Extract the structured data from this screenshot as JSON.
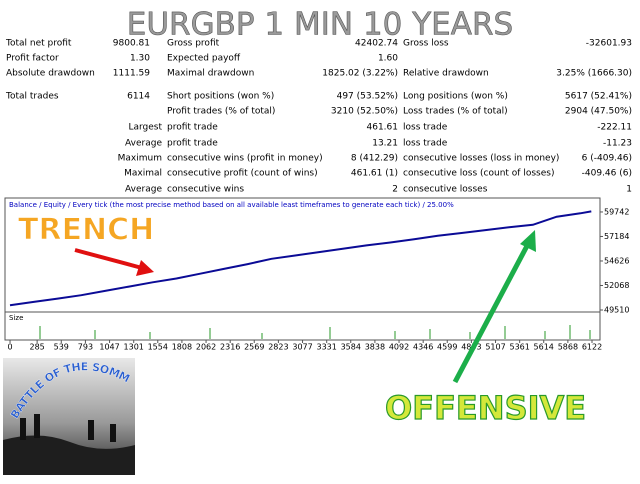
{
  "header": {
    "title": "EURGBP 1 MIN 10 YEARS"
  },
  "stats": {
    "rows": [
      {
        "c1": {
          "label": "Total net profit",
          "value": "9800.81"
        },
        "c2": {
          "label": "Gross profit",
          "value": "42402.74"
        },
        "c3": {
          "label": "Gross loss",
          "value": "-32601.93"
        }
      },
      {
        "c1": {
          "label": "Profit factor",
          "value": "1.30"
        },
        "c2": {
          "label": "Expected payoff",
          "value": "1.60"
        }
      },
      {
        "c1": {
          "label": "Absolute drawdown",
          "value": "1111.59"
        },
        "c2": {
          "label": "Maximal drawdown",
          "value": "1825.02 (3.22%)"
        },
        "c3": {
          "label": "Relative drawdown",
          "value": "3.25% (1666.30)"
        }
      },
      {
        "c1": {
          "label": "Total trades",
          "value": "6114"
        },
        "c2": {
          "label": "Short positions (won %)",
          "value": "497 (53.52%)"
        },
        "c3": {
          "label": "Long positions (won %)",
          "value": "5617 (52.41%)"
        }
      },
      {
        "c2": {
          "label": "Profit trades (% of total)",
          "value": "3210 (52.50%)"
        },
        "c3": {
          "label": "Loss trades (% of total)",
          "value": "2904 (47.50%)"
        }
      },
      {
        "c1": {
          "label": "Largest"
        },
        "c2": {
          "label": "profit trade",
          "value": "461.61"
        },
        "c3": {
          "label": "loss trade",
          "value": "-222.11"
        }
      },
      {
        "c1": {
          "label": "Average"
        },
        "c2": {
          "label": "profit trade",
          "value": "13.21"
        },
        "c3": {
          "label": "loss trade",
          "value": "-11.23"
        }
      },
      {
        "c1": {
          "label": "Maximum"
        },
        "c2": {
          "label": "consecutive wins (profit in money)",
          "value": "8 (412.29)"
        },
        "c3": {
          "label": "consecutive losses (loss in money)",
          "value": "6 (-409.46)"
        }
      },
      {
        "c1": {
          "label": "Maximal"
        },
        "c2": {
          "label": "consecutive profit (count of wins)",
          "value": "461.61 (1)"
        },
        "c3": {
          "label": "consecutive loss (count of losses)",
          "value": "-409.46 (6)"
        }
      },
      {
        "c1": {
          "label": "Average"
        },
        "c2": {
          "label": "consecutive wins",
          "value": "2"
        },
        "c3": {
          "label": "consecutive losses",
          "value": "1"
        }
      }
    ]
  },
  "chart": {
    "legend": "Balance / Equity / Every tick (the most precise method based on all available least timeframes to generate each tick) / 25.00%",
    "ylim": [
      49300,
      61200
    ],
    "yticks": [
      59742,
      57184,
      54626,
      52068,
      49510
    ],
    "xlim": [
      -53,
      6206
    ],
    "xticks": [
      0,
      285,
      539,
      793,
      1047,
      1301,
      1554,
      1808,
      2062,
      2316,
      2569,
      2823,
      3077,
      3331,
      3584,
      3838,
      4092,
      4346,
      4599,
      4853,
      5107,
      5361,
      5614,
      5868,
      6122
    ],
    "size_label": "Size",
    "balance": {
      "color": "#0b0b96",
      "x": [
        0,
        250,
        500,
        750,
        1000,
        1250,
        1500,
        1750,
        2000,
        2250,
        2500,
        2750,
        3000,
        3250,
        3500,
        3750,
        4000,
        4250,
        4500,
        4750,
        5000,
        5250,
        5500,
        5750,
        6000,
        6114
      ],
      "values": [
        50000,
        50350,
        50700,
        51050,
        51500,
        51950,
        52400,
        52800,
        53300,
        53800,
        54300,
        54850,
        55200,
        55550,
        55900,
        56250,
        56550,
        56900,
        57250,
        57550,
        57850,
        58150,
        58400,
        59250,
        59600,
        59800.81
      ]
    }
  },
  "overlays": {
    "trench": "TRENCH",
    "offensive": "OFFENSIVE",
    "image_caption": "BATTLE OF THE SOMME"
  }
}
